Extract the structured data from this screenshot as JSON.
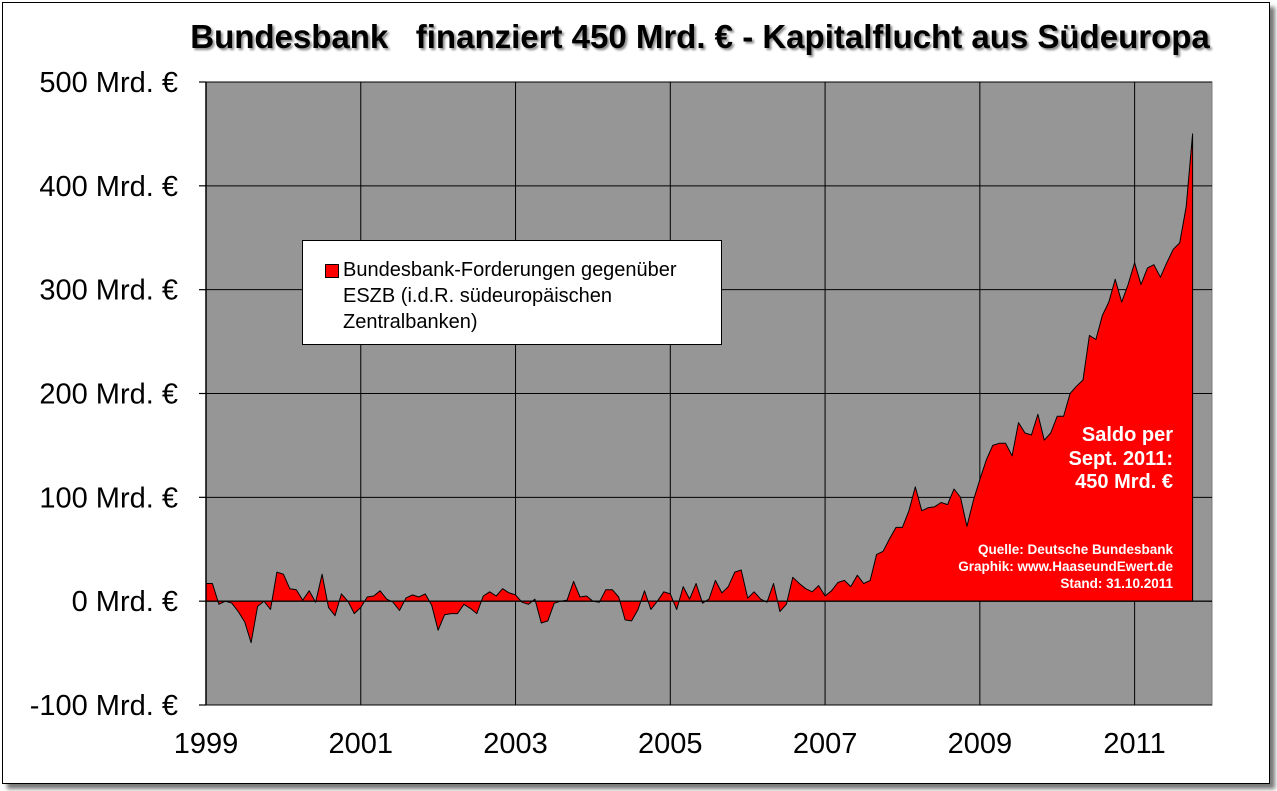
{
  "title": "Bundesbank   finanziert 450 Mrd. € - Kapitalflucht aus Südeuropa",
  "legend": {
    "label": "Bundesbank-Forderungen gegenüber ESZB (i.d.R. südeuropäischen Zentralbanken)",
    "color": "#ff0000"
  },
  "annotation": {
    "line1": "Saldo per",
    "line2": "Sept. 2011:",
    "line3": "450 Mrd. €"
  },
  "source": {
    "line1": "Quelle: Deutsche Bundesbank",
    "line2": "Graphik: www.HaaseundEwert.de",
    "line3": "Stand: 31.10.2011"
  },
  "chart_data": {
    "type": "area",
    "title": "Bundesbank   finanziert 450 Mrd. € - Kapitalflucht aus Südeuropa",
    "xlabel": "",
    "ylabel": "",
    "ylim": [
      -100,
      500
    ],
    "xlim": [
      1999,
      2012
    ],
    "y_tick_labels": [
      "-100 Mrd. €",
      "0 Mrd. €",
      "100 Mrd. €",
      "200 Mrd. €",
      "300 Mrd. €",
      "400 Mrd. €",
      "500 Mrd. €"
    ],
    "y_ticks": [
      -100,
      0,
      100,
      200,
      300,
      400,
      500
    ],
    "x_tick_labels": [
      "1999",
      "2001",
      "2003",
      "2005",
      "2007",
      "2009",
      "2011"
    ],
    "x_ticks": [
      1999,
      2001,
      2003,
      2005,
      2007,
      2009,
      2011
    ],
    "grid": true,
    "plot_background": "#969696",
    "fill_color": "#ff0000",
    "legend_position": "upper-left",
    "series": [
      {
        "name": "Bundesbank-Forderungen gegenüber ESZB (i.d.R. südeuropäischen Zentralbanken)",
        "x_start": 1999.0,
        "x_step": 0.08333,
        "values": [
          17,
          17,
          -3,
          0,
          -2,
          -10,
          -20,
          -40,
          -5,
          0,
          -8,
          28,
          26,
          12,
          11,
          1,
          10,
          -1,
          26,
          -6,
          -14,
          7,
          0,
          -12,
          -6,
          4,
          5,
          10,
          2,
          -1,
          -9,
          3,
          6,
          4,
          7,
          -4,
          -28,
          -13,
          -12,
          -12,
          -3,
          -7,
          -12,
          5,
          9,
          5,
          12,
          8,
          6,
          -1,
          -3,
          2,
          -21,
          -19,
          -2,
          0,
          1,
          19,
          4,
          5,
          0,
          -1,
          11,
          11,
          4,
          -18,
          -19,
          -8,
          10,
          -8,
          0,
          9,
          7,
          -8,
          14,
          2,
          17,
          -2,
          2,
          20,
          8,
          14,
          28,
          30,
          3,
          9,
          2,
          -1,
          17,
          -10,
          -3,
          23,
          17,
          12,
          9,
          15,
          5,
          10,
          18,
          20,
          14,
          25,
          17,
          20,
          45,
          48,
          60,
          71,
          71,
          87,
          110,
          87,
          90,
          91,
          95,
          93,
          108,
          100,
          72,
          97,
          117,
          136,
          150,
          152,
          152,
          140,
          172,
          162,
          160,
          180,
          155,
          162,
          178,
          178,
          200,
          207,
          213,
          256,
          252,
          275,
          288,
          310,
          288,
          305,
          326,
          305,
          321,
          324,
          312,
          326,
          339,
          345,
          380,
          450
        ]
      }
    ]
  }
}
